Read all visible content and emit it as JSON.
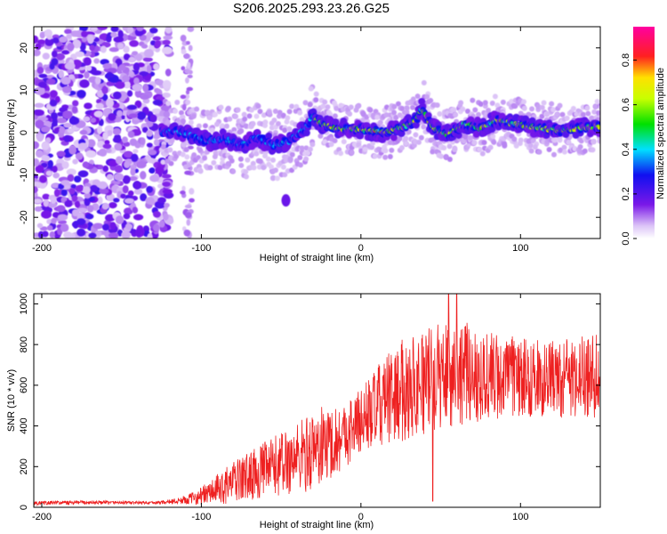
{
  "title": "S206.2025.293.23.26.G25",
  "colors": {
    "snr_line": "#ee2020",
    "text": "#000000"
  },
  "chart_data": [
    {
      "type": "heatmap",
      "title": "S206.2025.293.23.26.G25",
      "xlabel": "Height of straight line (km)",
      "ylabel": "Frequency (Hz)",
      "xlim": [
        -205,
        150
      ],
      "ylim": [
        -25,
        25
      ],
      "xticks": [
        -200,
        -100,
        0,
        100
      ],
      "xtick_labels": [
        "-200",
        "-100",
        "0",
        "100"
      ],
      "yticks": [
        20,
        10,
        0,
        -10,
        -20
      ],
      "ytick_labels": [
        "20",
        "10",
        "0",
        "-10",
        "-20"
      ],
      "colorbar": {
        "label": "Normalized spectral amplitude",
        "range": [
          0,
          0.95
        ],
        "ticks": [
          0.0,
          0.2,
          0.4,
          0.6,
          0.8
        ],
        "tick_labels": [
          "0.0",
          "0.2",
          "0.4",
          "0.6",
          "0.8"
        ],
        "colormap": "rainbow (purple → blue → cyan → green → yellow → red → magenta)"
      },
      "ridge": {
        "description": "Dominant frequency ridge vs height; noise region below about -120 km",
        "x": [
          -125,
          -115,
          -105,
          -95,
          -85,
          -75,
          -65,
          -55,
          -45,
          -35,
          -30,
          -25,
          -15,
          -5,
          5,
          15,
          25,
          35,
          38,
          45,
          55,
          65,
          75,
          85,
          95,
          105,
          115,
          125,
          135,
          150
        ],
        "y": [
          0,
          0.5,
          -1,
          -2,
          -1.5,
          -3,
          -1,
          -3,
          -2,
          1,
          4,
          2,
          1,
          1,
          0.5,
          0,
          1,
          3,
          6,
          1,
          -0.5,
          2,
          1,
          3,
          2,
          1.5,
          1,
          0.5,
          1,
          1.5
        ]
      }
    },
    {
      "type": "line",
      "xlabel": "Height of straight line (km)",
      "ylabel": "SNR (10 * v/v)",
      "xlim": [
        -205,
        150
      ],
      "ylim": [
        0,
        1050
      ],
      "xticks": [
        -200,
        -100,
        0,
        100
      ],
      "xtick_labels": [
        "-200",
        "-100",
        "0",
        "100"
      ],
      "yticks": [
        0,
        200,
        400,
        600,
        800,
        1000
      ],
      "ytick_labels": [
        "0",
        "200",
        "400",
        "600",
        "800",
        "1000"
      ],
      "series": [
        {
          "name": "SNR",
          "x": [
            -205,
            -190,
            -170,
            -150,
            -130,
            -115,
            -105,
            -95,
            -85,
            -75,
            -65,
            -55,
            -45,
            -35,
            -25,
            -15,
            -5,
            5,
            15,
            25,
            35,
            45,
            55,
            65,
            75,
            85,
            95,
            105,
            115,
            125,
            135,
            145,
            150
          ],
          "mean": [
            20,
            22,
            24,
            23,
            22,
            30,
            45,
            70,
            105,
            140,
            170,
            200,
            230,
            260,
            300,
            330,
            390,
            460,
            520,
            570,
            610,
            630,
            660,
            660,
            650,
            640,
            640,
            635,
            630,
            630,
            640,
            650,
            650
          ],
          "amplitude": [
            10,
            10,
            10,
            8,
            6,
            15,
            30,
            60,
            90,
            110,
            130,
            150,
            170,
            190,
            200,
            170,
            160,
            180,
            220,
            250,
            260,
            260,
            270,
            250,
            240,
            220,
            200,
            190,
            190,
            190,
            200,
            210,
            210
          ],
          "notes": "Noisy trace; local maxima near 1060 at x≈55 km and x≈60 km; sharp dip to ~30 at x≈45 km"
        }
      ]
    }
  ]
}
